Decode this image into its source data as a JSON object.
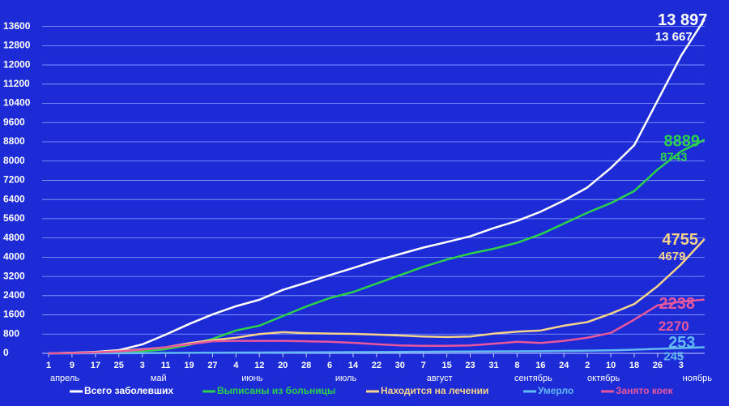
{
  "chart_data": {
    "type": "line",
    "categories": [
      "1",
      "9",
      "17",
      "25",
      "3",
      "11",
      "19",
      "27",
      "4",
      "12",
      "20",
      "28",
      "6",
      "14",
      "22",
      "30",
      "7",
      "15",
      "23",
      "31",
      "8",
      "16",
      "24",
      "2",
      "10",
      "18",
      "26",
      "3",
      null
    ],
    "months": [
      "апрель",
      null,
      null,
      null,
      "май",
      null,
      null,
      null,
      "июнь",
      null,
      null,
      null,
      "июль",
      null,
      null,
      null,
      "август",
      null,
      null,
      null,
      "сентябрь",
      null,
      null,
      "октябрь",
      null,
      null,
      null,
      "ноябрь",
      null
    ],
    "ylim": [
      0,
      14700
    ],
    "yticks": [
      0,
      800,
      1600,
      2400,
      3200,
      4000,
      4800,
      5600,
      6400,
      7200,
      8000,
      8800,
      9600,
      10400,
      11200,
      12000,
      12800,
      13600
    ],
    "grid": true,
    "series": [
      {
        "name": "Всего заболевших",
        "color": "#ffffff",
        "labels": [
          "13 667",
          "13 897"
        ],
        "values": [
          0,
          20,
          60,
          130,
          372,
          780,
          1220,
          1620,
          1960,
          2230,
          2640,
          2940,
          3250,
          3550,
          3860,
          4130,
          4400,
          4630,
          4870,
          5210,
          5510,
          5890,
          6360,
          6900,
          7710,
          8660,
          10520,
          12380,
          13897
        ]
      },
      {
        "name": "Выписаны из больницы",
        "color": "#2bd24a",
        "labels": [
          "8743",
          "8889"
        ],
        "values": [
          0,
          5,
          15,
          40,
          90,
          170,
          350,
          600,
          950,
          1150,
          1550,
          1950,
          2300,
          2550,
          2900,
          3250,
          3600,
          3900,
          4150,
          4350,
          4600,
          4950,
          5400,
          5850,
          6250,
          6750,
          7650,
          8400,
          8889
        ]
      },
      {
        "name": "Находится на лечении",
        "color": "#f6d38a",
        "labels": [
          "4679",
          "4755"
        ],
        "values": [
          0,
          20,
          50,
          100,
          170,
          250,
          420,
          550,
          650,
          800,
          880,
          840,
          820,
          810,
          780,
          740,
          700,
          680,
          700,
          820,
          900,
          950,
          1150,
          1300,
          1650,
          2050,
          2800,
          3700,
          4755
        ]
      },
      {
        "name": "Умерло",
        "color": "#62b8f2",
        "labels": [
          "245",
          "253"
        ],
        "values": [
          0,
          1,
          3,
          6,
          10,
          15,
          20,
          25,
          30,
          35,
          38,
          42,
          46,
          50,
          55,
          60,
          65,
          70,
          75,
          80,
          85,
          90,
          100,
          110,
          125,
          150,
          185,
          220,
          253
        ]
      },
      {
        "name": "Занято коек",
        "color": "#e8579c",
        "labels": [
          "2270",
          "2238"
        ],
        "values": [
          0,
          10,
          40,
          80,
          150,
          250,
          380,
          500,
          520,
          520,
          520,
          500,
          480,
          440,
          380,
          330,
          310,
          310,
          330,
          400,
          480,
          430,
          520,
          650,
          850,
          1400,
          2000,
          2150,
          2238
        ]
      }
    ]
  }
}
